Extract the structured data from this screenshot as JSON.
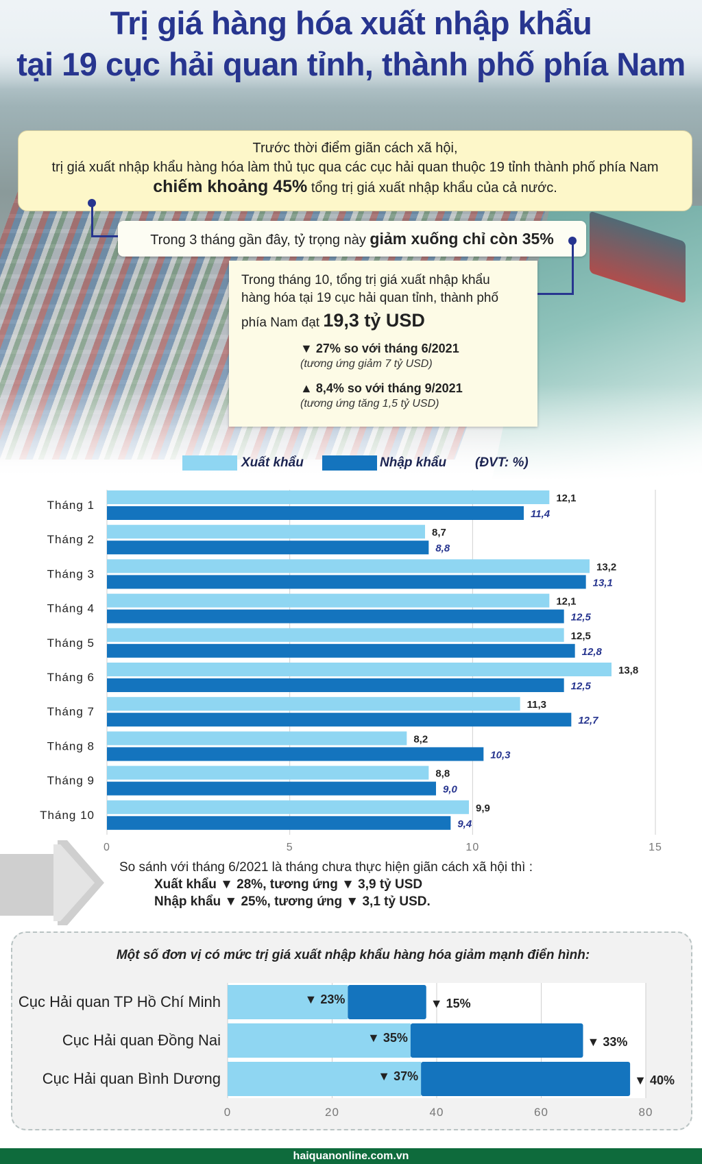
{
  "title": {
    "line1": "Trị giá hàng hóa xuất nhập khẩu",
    "line2": "tại 19 cục hải quan tỉnh, thành phố phía Nam"
  },
  "box1": {
    "line1": "Trước thời điểm giãn cách xã hội,",
    "line2": "trị giá xuất nhập khẩu hàng hóa làm thủ tục qua các cục hải quan thuộc 19 tỉnh thành phố phía Nam",
    "emphasis": "chiếm khoảng 45%",
    "rest": "tổng trị giá xuất nhập khẩu của cả nước."
  },
  "box2": {
    "text": "Trong 3 tháng gần đây, tỷ trọng này",
    "emphasis": "giảm xuống chỉ còn 35%"
  },
  "box3": {
    "line1": "Trong tháng 10, tổng trị giá xuất nhập khẩu",
    "line2": "hàng hóa tại 19 cục hải quan tỉnh, thành phố",
    "line3": "phía Nam đạt",
    "value": "19,3 tỷ USD",
    "change1": "▼ 27% so với tháng 6/2021",
    "change1_sub": "(tương ứng giảm 7 tỷ USD)",
    "change2": "▲ 8,4% so với tháng 9/2021",
    "change2_sub": "(tương ứng tăng 1,5 tỷ USD)"
  },
  "legend": {
    "export": "Xuất khẩu",
    "import": "Nhập khẩu",
    "unit": "(ĐVT: %)"
  },
  "colors": {
    "export": "#8fd6f2",
    "import": "#1474be",
    "title": "#27358f",
    "import_label": "#27358f"
  },
  "chart_data": [
    {
      "type": "bar",
      "orientation": "horizontal",
      "categories": [
        "Tháng 1",
        "Tháng 2",
        "Tháng 3",
        "Tháng 4",
        "Tháng 5",
        "Tháng 6",
        "Tháng 7",
        "Tháng 8",
        "Tháng 9",
        "Tháng 10"
      ],
      "series": [
        {
          "name": "Xuất khẩu",
          "values": [
            12.1,
            8.7,
            13.2,
            12.1,
            12.5,
            13.8,
            11.3,
            8.2,
            8.8,
            9.9
          ],
          "labels": [
            "12,1",
            "8,7",
            "13,2",
            "12,1",
            "12,5",
            "13,8",
            "11,3",
            "8,2",
            "8,8",
            "9,9"
          ]
        },
        {
          "name": "Nhập khẩu",
          "values": [
            11.4,
            8.8,
            13.1,
            12.5,
            12.8,
            12.5,
            12.7,
            10.3,
            9.0,
            9.4
          ],
          "labels": [
            "11,4",
            "8,8",
            "13,1",
            "12,5",
            "12,8",
            "12,5",
            "12,7",
            "10,3",
            "9,0",
            "9,4"
          ]
        }
      ],
      "xlim": [
        0,
        15
      ],
      "xticks": [
        "0",
        "5",
        "10",
        "15"
      ],
      "grid": true,
      "legend_position": "top"
    },
    {
      "type": "bar",
      "orientation": "horizontal",
      "stacked": true,
      "title": "Một số đơn vị có mức trị giá xuất nhập khẩu hàng hóa giảm mạnh điển hình:",
      "categories": [
        "Cục Hải quan TP Hồ Chí Minh",
        "Cục Hải quan Đồng Nai",
        "Cục Hải quan Bình Dương"
      ],
      "series": [
        {
          "name": "Xuất khẩu",
          "values": [
            23,
            35,
            37
          ],
          "labels": [
            "▼ 23%",
            "▼ 35%",
            "▼ 37%"
          ]
        },
        {
          "name": "Nhập khẩu",
          "values": [
            15,
            33,
            40
          ],
          "labels": [
            "▼ 15%",
            "▼ 33%",
            "▼ 40%"
          ]
        }
      ],
      "xlim": [
        0,
        80
      ],
      "xticks": [
        "0",
        "20",
        "40",
        "60",
        "80"
      ],
      "grid": true
    }
  ],
  "comparison": {
    "intro": "So sánh với tháng 6/2021 là tháng chưa thực hiện giãn cách xã hội thì :",
    "export_line": "Xuất khẩu ▼ 28%, tương ứng ▼ 3,9 tỷ USD",
    "import_line": "Nhập khẩu ▼ 25%, tương ứng ▼ 3,1 tỷ USD."
  },
  "footer": "haiquanonline.com.vn"
}
